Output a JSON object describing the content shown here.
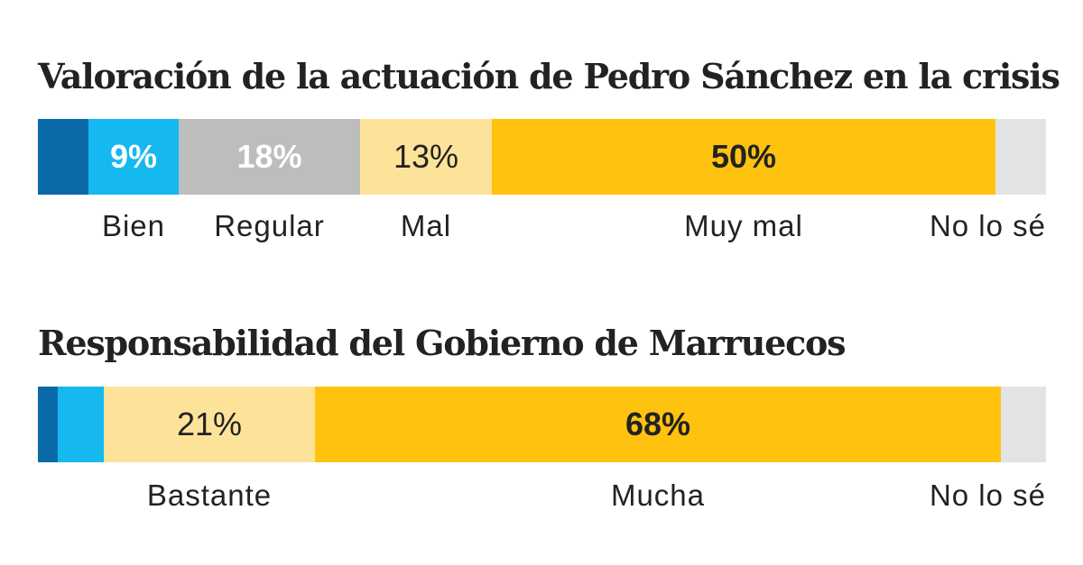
{
  "chart_data": [
    {
      "type": "bar",
      "orientation": "horizontal-stacked",
      "title": "Valoración de la actuación de Pedro Sánchez en la crisis",
      "xlim": [
        0,
        100
      ],
      "segments": [
        {
          "category": "",
          "value": 5,
          "color": "#0a6aa8",
          "value_label": "",
          "label_color": "#ffffff",
          "bold": true
        },
        {
          "category": "Bien",
          "value": 9,
          "color": "#16b8f0",
          "value_label": "9%",
          "label_color": "#ffffff",
          "bold": true
        },
        {
          "category": "Regular",
          "value": 18,
          "color": "#bdbdbd",
          "value_label": "18%",
          "label_color": "#ffffff",
          "bold": true
        },
        {
          "category": "Mal",
          "value": 13,
          "color": "#fde39a",
          "value_label": "13%",
          "label_color": "#222222",
          "bold": false
        },
        {
          "category": "Muy mal",
          "value": 50,
          "color": "#ffc30f",
          "value_label": "50%",
          "label_color": "#222222",
          "bold": true
        },
        {
          "category": "No lo sé",
          "value": 5,
          "color": "#e2e3e5",
          "value_label": "",
          "label_color": "#222222",
          "bold": false
        }
      ]
    },
    {
      "type": "bar",
      "orientation": "horizontal-stacked",
      "title": "Responsabilidad del Gobierno de Marruecos",
      "xlim": [
        0,
        100
      ],
      "segments": [
        {
          "category": "",
          "value": 2,
          "color": "#0a6aa8",
          "value_label": "",
          "label_color": "#ffffff",
          "bold": true
        },
        {
          "category": "",
          "value": 4.5,
          "color": "#16b8f0",
          "value_label": "",
          "label_color": "#ffffff",
          "bold": true
        },
        {
          "category": "Bastante",
          "value": 21,
          "color": "#fde39a",
          "value_label": "21%",
          "label_color": "#222222",
          "bold": false
        },
        {
          "category": "Mucha",
          "value": 68,
          "color": "#ffc30f",
          "value_label": "68%",
          "label_color": "#222222",
          "bold": true
        },
        {
          "category": "No lo sé",
          "value": 4.5,
          "color": "#e2e3e5",
          "value_label": "",
          "label_color": "#222222",
          "bold": false
        }
      ]
    }
  ]
}
